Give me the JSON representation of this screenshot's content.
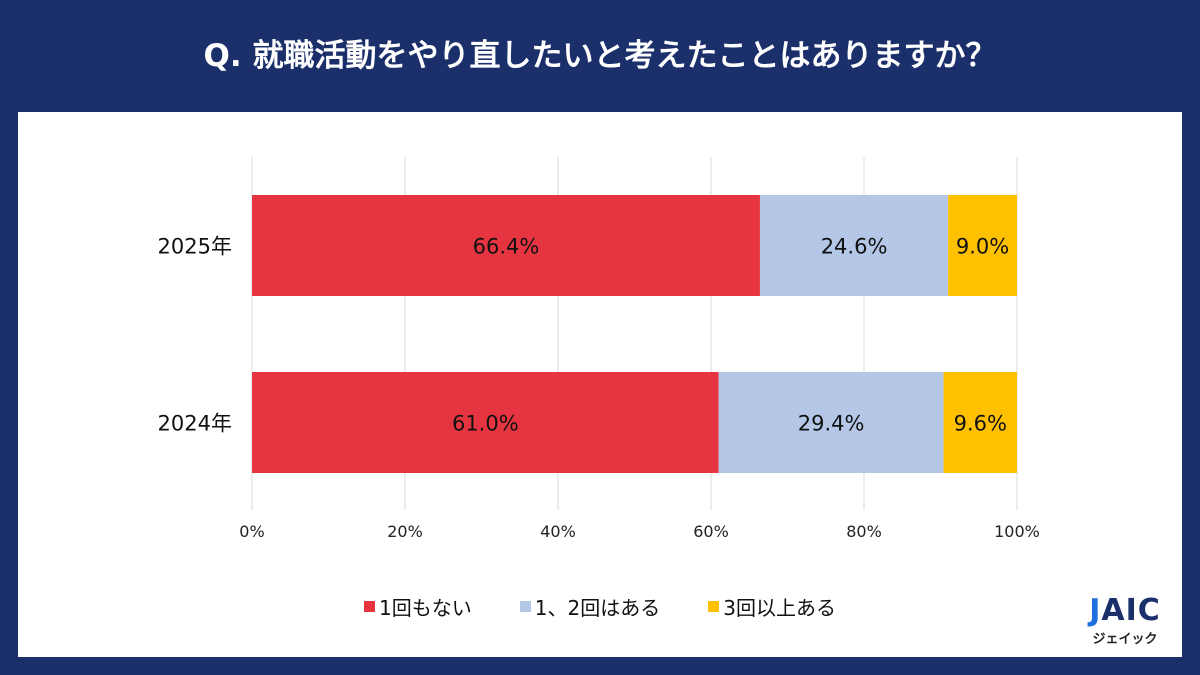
{
  "title": "Q. 就職活動をやり直したいと考えたことはありますか？",
  "colors": {
    "background": "#1b2f6b",
    "series": [
      "#e63541",
      "#b4c7e7",
      "#ffc000"
    ]
  },
  "chart_data": {
    "type": "bar",
    "orientation": "horizontal",
    "stacked": true,
    "categories": [
      "2025年",
      "2024年"
    ],
    "series": [
      {
        "name": "1回もない",
        "values": [
          66.4,
          61.0
        ],
        "labels": [
          "66.4%",
          "61.0%"
        ]
      },
      {
        "name": "1、2回はある",
        "values": [
          24.6,
          29.4
        ],
        "labels": [
          "24.6%",
          "29.4%"
        ]
      },
      {
        "name": "3回以上ある",
        "values": [
          9.0,
          9.6
        ],
        "labels": [
          "9.0%",
          "9.6%"
        ]
      }
    ],
    "xlim": [
      0,
      100
    ],
    "xticks": [
      "0%",
      "20%",
      "40%",
      "60%",
      "80%",
      "100%"
    ],
    "grid": "vertical",
    "legend": "bottom"
  },
  "logo": {
    "text": "JAIC",
    "subtext": "ジェイック"
  }
}
